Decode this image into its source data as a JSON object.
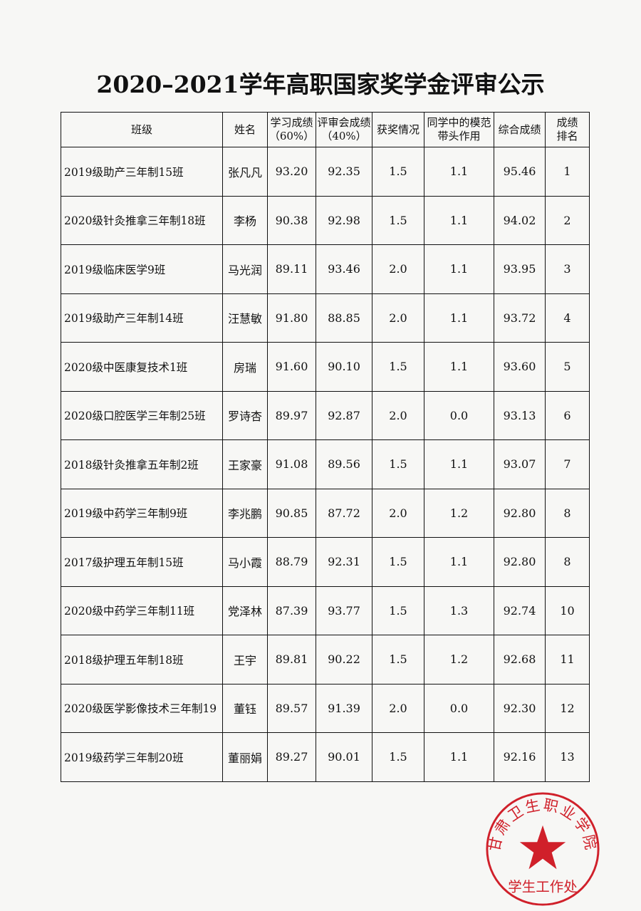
{
  "title": "2020–2021学年高职国家奖学金评审公示",
  "table": {
    "headers": [
      "班级",
      "姓名",
      "学习成绩\n（60%）",
      "评审会成绩\n（40%）",
      "获奖情况",
      "同学中的模范\n带头作用",
      "综合成绩",
      "成绩\n排名"
    ],
    "rows": [
      [
        "2019级助产三年制15班",
        "张凡凡",
        "93.20",
        "92.35",
        "1.5",
        "1.1",
        "95.46",
        "1"
      ],
      [
        "2020级针灸推拿三年制18班",
        "李杨",
        "90.38",
        "92.98",
        "1.5",
        "1.1",
        "94.02",
        "2"
      ],
      [
        "2019级临床医学9班",
        "马光润",
        "89.11",
        "93.46",
        "2.0",
        "1.1",
        "93.95",
        "3"
      ],
      [
        "2019级助产三年制14班",
        "汪慧敏",
        "91.80",
        "88.85",
        "2.0",
        "1.1",
        "93.72",
        "4"
      ],
      [
        "2020级中医康复技术1班",
        "房瑞",
        "91.60",
        "90.10",
        "1.5",
        "1.1",
        "93.60",
        "5"
      ],
      [
        "2020级口腔医学三年制25班",
        "罗诗杏",
        "89.97",
        "92.87",
        "2.0",
        "0.0",
        "93.13",
        "6"
      ],
      [
        "2018级针灸推拿五年制2班",
        "王家豪",
        "91.08",
        "89.56",
        "1.5",
        "1.1",
        "93.07",
        "7"
      ],
      [
        "2019级中药学三年制9班",
        "李兆鹏",
        "90.85",
        "87.72",
        "2.0",
        "1.2",
        "92.80",
        "8"
      ],
      [
        "2017级护理五年制15班",
        "马小霞",
        "88.79",
        "92.31",
        "1.5",
        "1.1",
        "92.80",
        "8"
      ],
      [
        "2020级中药学三年制11班",
        "党泽林",
        "87.39",
        "93.77",
        "1.5",
        "1.3",
        "92.74",
        "10"
      ],
      [
        "2018级护理五年制18班",
        "王宇",
        "89.81",
        "90.22",
        "1.5",
        "1.2",
        "92.68",
        "11"
      ],
      [
        "2020级医学影像技术三年制19",
        "董钰",
        "89.57",
        "91.39",
        "2.0",
        "0.0",
        "92.30",
        "12"
      ],
      [
        "2019级药学三年制20班",
        "董丽娟",
        "89.27",
        "90.01",
        "1.5",
        "1.1",
        "92.16",
        "13"
      ]
    ]
  },
  "stamp": {
    "top_text": "甘肃卫生职业学院",
    "bottom_text": "学生工作处",
    "icon": "star-icon",
    "color": "#d0202a"
  }
}
